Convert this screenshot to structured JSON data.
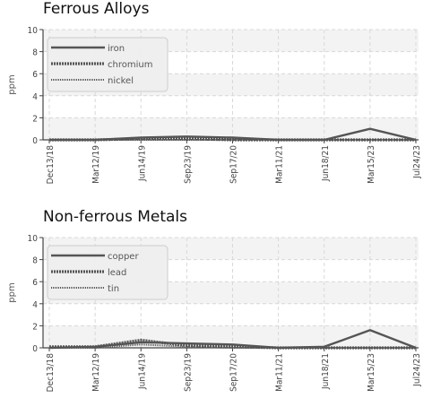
{
  "chart_data": [
    {
      "type": "line",
      "title": "Ferrous Alloys",
      "xlabel": "",
      "ylabel": "ppm",
      "ylim": [
        0,
        10
      ],
      "yticks": [
        0,
        2,
        4,
        6,
        8,
        10
      ],
      "grid": true,
      "legend_position": "top-left",
      "categories": [
        "Dec13/18",
        "Mar12/19",
        "Jun14/19",
        "Sep23/19",
        "Sep17/20",
        "Mar11/21",
        "Jun18/21",
        "Mar15/23",
        "Jul24/23"
      ],
      "series": [
        {
          "name": "iron",
          "style": "solid",
          "values": [
            0,
            0,
            0.2,
            0.3,
            0.2,
            0,
            0,
            1.0,
            0
          ]
        },
        {
          "name": "chromium",
          "style": "dashed",
          "values": [
            0,
            0,
            0.1,
            0.1,
            0,
            0,
            0,
            0,
            0
          ]
        },
        {
          "name": "nickel",
          "style": "dotted",
          "values": [
            0,
            0,
            0,
            0,
            0,
            0,
            0,
            0,
            0
          ]
        }
      ]
    },
    {
      "type": "line",
      "title": "Non-ferrous Metals",
      "xlabel": "",
      "ylabel": "ppm",
      "ylim": [
        0,
        10
      ],
      "yticks": [
        0,
        2,
        4,
        6,
        8,
        10
      ],
      "grid": true,
      "legend_position": "top-left",
      "categories": [
        "Dec13/18",
        "Mar12/19",
        "Jun14/19",
        "Sep23/19",
        "Sep17/20",
        "Mar11/21",
        "Jun18/21",
        "Mar15/23",
        "Jul24/23"
      ],
      "series": [
        {
          "name": "copper",
          "style": "solid",
          "values": [
            0,
            0.1,
            0.5,
            0.4,
            0.3,
            0,
            0.1,
            1.6,
            0
          ]
        },
        {
          "name": "lead",
          "style": "dashed",
          "values": [
            0.1,
            0.1,
            0.7,
            0.2,
            0.1,
            0,
            0,
            0,
            0
          ]
        },
        {
          "name": "tin",
          "style": "dotted",
          "values": [
            0,
            0,
            0.3,
            0.1,
            0,
            0,
            0,
            0,
            0
          ]
        }
      ]
    }
  ]
}
